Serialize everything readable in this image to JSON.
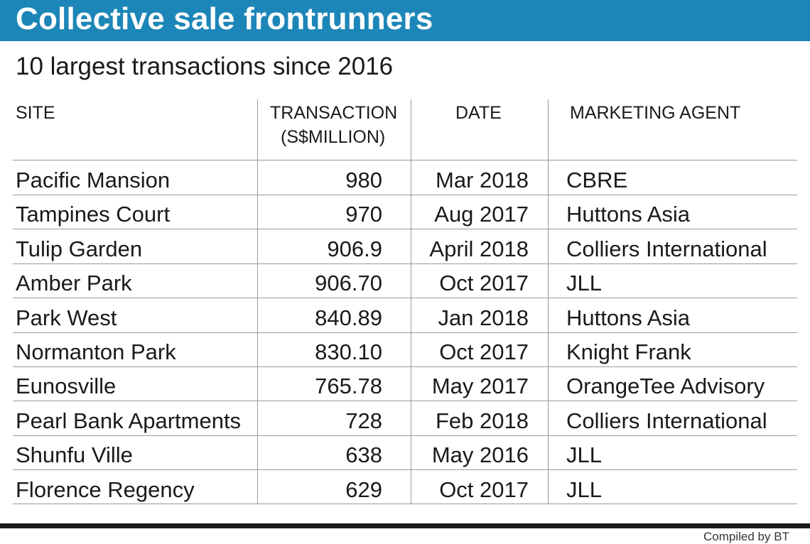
{
  "title": "Collective sale frontrunners",
  "subtitle": "10 largest transactions since 2016",
  "table": {
    "headers": {
      "site": "SITE",
      "transaction_line1": "TRANSACTION",
      "transaction_line2": "(S$MILLION)",
      "date": "DATE",
      "agent": "MARKETING AGENT"
    },
    "rows": [
      {
        "site": "Pacific Mansion",
        "transaction": "980",
        "date": "Mar 2018",
        "agent": "CBRE"
      },
      {
        "site": "Tampines Court",
        "transaction": "970",
        "date": "Aug 2017",
        "agent": "Huttons Asia"
      },
      {
        "site": "Tulip Garden",
        "transaction": "906.9",
        "date": "April 2018",
        "agent": "Colliers International"
      },
      {
        "site": "Amber Park",
        "transaction": "906.70",
        "date": "Oct 2017",
        "agent": "JLL"
      },
      {
        "site": "Park West",
        "transaction": "840.89",
        "date": "Jan 2018",
        "agent": "Huttons Asia"
      },
      {
        "site": "Normanton Park",
        "transaction": "830.10",
        "date": "Oct 2017",
        "agent": "Knight Frank"
      },
      {
        "site": "Eunosville",
        "transaction": "765.78",
        "date": "May 2017",
        "agent": "OrangeTee Advisory"
      },
      {
        "site": "Pearl Bank Apartments",
        "transaction": "728",
        "date": "Feb 2018",
        "agent": "Colliers International"
      },
      {
        "site": "Shunfu Ville",
        "transaction": "638",
        "date": "May 2016",
        "agent": "JLL"
      },
      {
        "site": "Florence Regency",
        "transaction": "629",
        "date": "Oct 2017",
        "agent": "JLL"
      }
    ]
  },
  "credit": "Compiled by BT",
  "colors": {
    "title_bar": "#1d86b8",
    "title_text": "#ffffff",
    "rule": "#9a9a9a"
  }
}
